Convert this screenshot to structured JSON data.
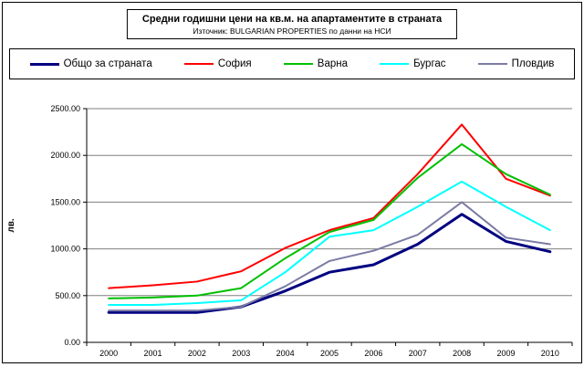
{
  "chart": {
    "title": "Средни годишни цени на кв.м. на апартаментите в страната",
    "subtitle": "Източник: BULGARIAN PROPERTIES по данни на НСИ"
  },
  "chart_data": {
    "type": "line",
    "title": "Средни годишни цени на кв.м. на апартаментите в страната",
    "subtitle": "Източник: BULGARIAN PROPERTIES по данни на НСИ",
    "categories": [
      "2000",
      "2001",
      "2002",
      "2003",
      "2004",
      "2005",
      "2006",
      "2007",
      "2008",
      "2009",
      "2010"
    ],
    "series": [
      {
        "name": "Общо за страната",
        "color": "#000080",
        "width": 3,
        "values": [
          320,
          320,
          320,
          380,
          550,
          750,
          830,
          1050,
          1370,
          1080,
          970
        ]
      },
      {
        "name": "София",
        "color": "#FF0000",
        "width": 2,
        "values": [
          580,
          610,
          650,
          760,
          1010,
          1200,
          1330,
          1800,
          2330,
          1750,
          1570
        ]
      },
      {
        "name": "Варна",
        "color": "#00C000",
        "width": 2,
        "values": [
          470,
          480,
          500,
          580,
          900,
          1180,
          1310,
          1760,
          2120,
          1800,
          1580
        ]
      },
      {
        "name": "Бургас",
        "color": "#00FFFF",
        "width": 2,
        "values": [
          400,
          400,
          420,
          450,
          750,
          1130,
          1200,
          1450,
          1720,
          1450,
          1200
        ]
      },
      {
        "name": "Пловдив",
        "color": "#7B7BA5",
        "width": 2,
        "values": [
          340,
          340,
          340,
          380,
          600,
          870,
          980,
          1150,
          1500,
          1120,
          1050
        ]
      }
    ],
    "xlabel": "",
    "ylabel": "лв.",
    "ylim": [
      0,
      2500
    ],
    "ytick_labels": [
      "0.00",
      "500.00",
      "1000.00",
      "1500.00",
      "2000.00",
      "2500.00"
    ],
    "grid": true,
    "legend_position": "top"
  }
}
